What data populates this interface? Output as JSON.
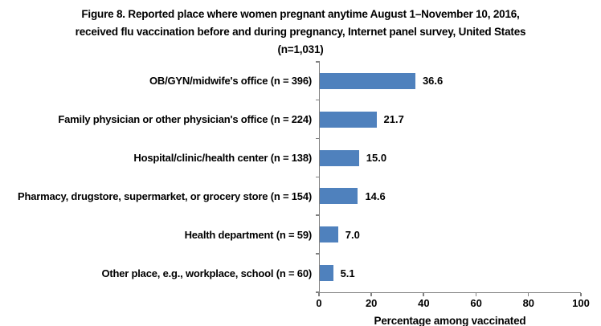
{
  "chart_data": {
    "type": "bar",
    "orientation": "horizontal",
    "title": "Figure 8. Reported place where women pregnant anytime August 1–November 10, 2016, received flu vaccination before and during pregnancy, Internet panel survey, United States (n=1,031)",
    "title_lines": [
      "Figure 8. Reported place where women pregnant anytime August 1–November 10, 2016,",
      "received flu vaccination before and during pregnancy, Internet panel survey, United States",
      "(n=1,031)"
    ],
    "categories": [
      "OB/GYN/midwife's office (n = 396)",
      "Family physician or other physician's office (n = 224)",
      "Hospital/clinic/health center (n = 138)",
      "Pharmacy, drugstore, supermarket, or grocery store (n = 154)",
      "Health department (n = 59)",
      "Other place, e.g., workplace, school (n = 60)"
    ],
    "values": [
      36.6,
      21.7,
      15.0,
      14.6,
      7.0,
      5.1
    ],
    "value_labels": [
      "36.6",
      "21.7",
      "15.0",
      "14.6",
      "7.0",
      "5.1"
    ],
    "xlabel": "Percentage among vaccinated",
    "xlim": [
      0,
      100
    ],
    "xticks": [
      0,
      20,
      40,
      60,
      80,
      100
    ],
    "xtick_labels": [
      "0",
      "20",
      "40",
      "60",
      "80",
      "100"
    ],
    "grid": false,
    "legend": false,
    "bar_color": "#4F81BD",
    "axis_color": "#808080",
    "text_color": "#000000",
    "background_color": "#FFFFFF"
  }
}
